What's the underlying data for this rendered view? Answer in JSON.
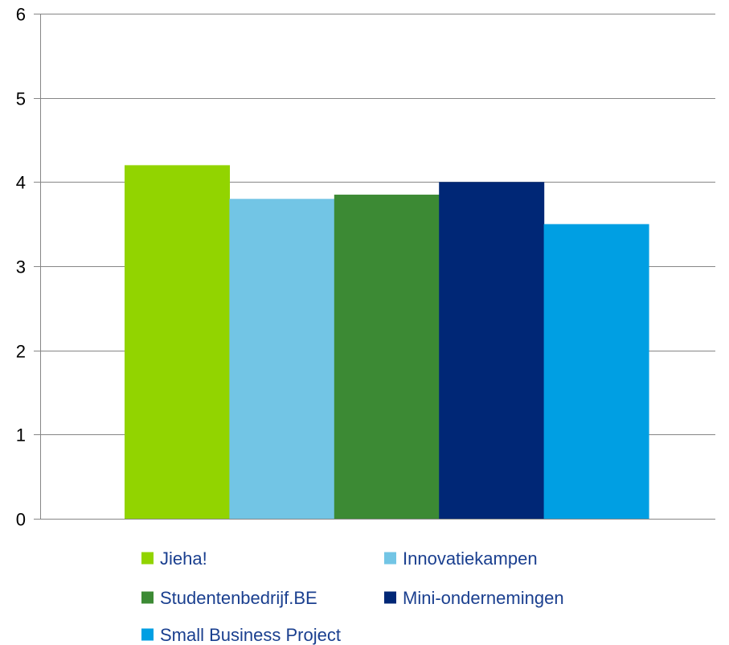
{
  "chart_data": {
    "type": "bar",
    "title": "",
    "xlabel": "",
    "ylabel": "",
    "ylim": [
      0,
      6
    ],
    "yticks": [
      0,
      1,
      2,
      3,
      4,
      5,
      6
    ],
    "grid": true,
    "legend_position": "bottom",
    "categories": [
      ""
    ],
    "series": [
      {
        "name": "Jieha!",
        "color": "#92d400",
        "values": [
          4.2
        ]
      },
      {
        "name": "Innovatiekampen",
        "color": "#72c5e5",
        "values": [
          3.8
        ]
      },
      {
        "name": "Studentenbedrijf.BE",
        "color": "#3c8a34",
        "values": [
          3.85
        ]
      },
      {
        "name": "Mini-ondernemingen",
        "color": "#002776",
        "values": [
          4.0
        ]
      },
      {
        "name": "Small Business Project",
        "color": "#009fe3",
        "values": [
          3.5
        ]
      }
    ]
  }
}
